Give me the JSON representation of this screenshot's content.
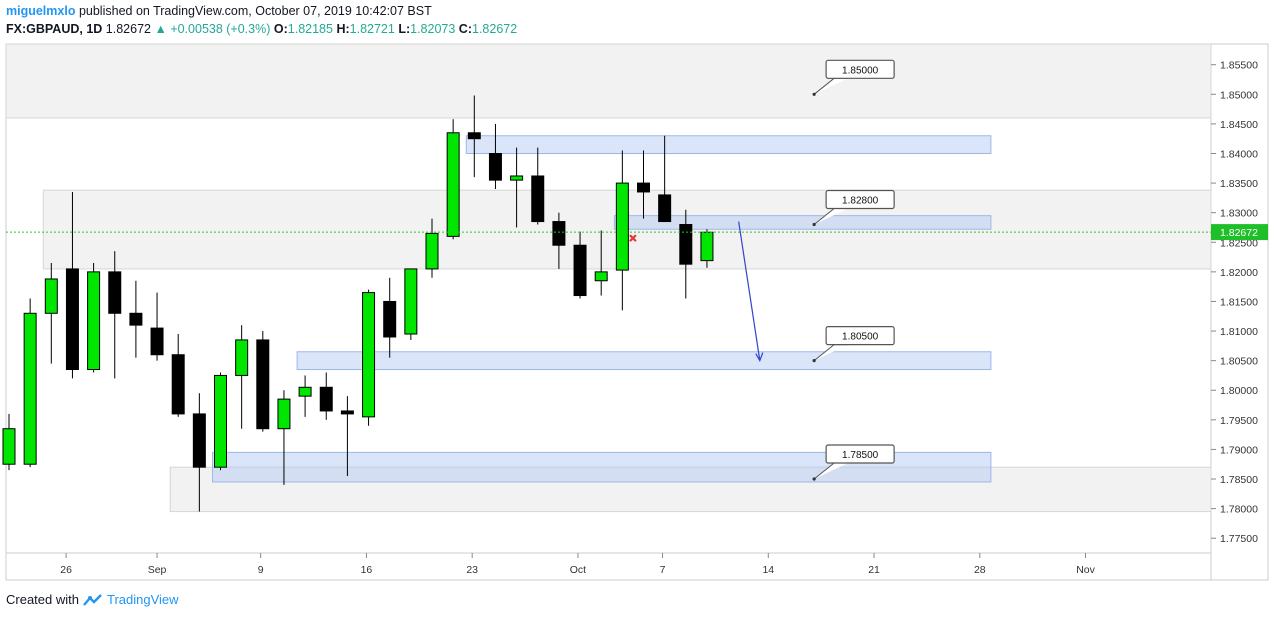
{
  "header": {
    "author": "miguelmxlo",
    "published_text": "published on TradingView.com, October 07, 2019 10:42:07 BST",
    "symbol": "FX:GBPAUD, 1D",
    "last": "1.82672",
    "change": "▲ +0.00538 (+0.3%)",
    "o_label": "O:",
    "o_val": "1.82185",
    "h_label": "H:",
    "h_val": "1.82721",
    "l_label": "L:",
    "l_val": "1.82073",
    "c_label": "C:",
    "c_val": "1.82672"
  },
  "footer": {
    "created_with": "Created with",
    "brand": "TradingView"
  },
  "colors": {
    "up": "#00e600",
    "down": "#000000",
    "grid_border": "#cccccc",
    "zone_gray": "#f2f2f2",
    "zone_blue": "rgba(173,198,245,0.45)",
    "price_line": "#22cc22",
    "arrow": "#3344cc",
    "cross": "#e53935"
  },
  "chart_data": {
    "type": "candlestick",
    "ylim": [
      1.7725,
      1.8585
    ],
    "y_ticks": [
      "1.85500",
      "1.85000",
      "1.84500",
      "1.84000",
      "1.83500",
      "1.83000",
      "1.82500",
      "1.82000",
      "1.81500",
      "1.81000",
      "1.80500",
      "1.80000",
      "1.79500",
      "1.79000",
      "1.78500",
      "1.78000",
      "1.77500"
    ],
    "y_tick_values": [
      1.855,
      1.85,
      1.845,
      1.84,
      1.835,
      1.83,
      1.825,
      1.82,
      1.815,
      1.81,
      1.805,
      1.8,
      1.795,
      1.79,
      1.785,
      1.78,
      1.775
    ],
    "x_ticks": [
      "26",
      "Sep",
      "9",
      "16",
      "23",
      "Oct",
      "7",
      "14",
      "21",
      "28",
      "Nov"
    ],
    "last_price_label": "1.82672",
    "last_price": 1.82672,
    "candles": [
      {
        "o": 1.7875,
        "h": 1.796,
        "l": 1.7865,
        "c": 1.7935
      },
      {
        "o": 1.7875,
        "h": 1.8155,
        "l": 1.787,
        "c": 1.813
      },
      {
        "o": 1.813,
        "h": 1.8215,
        "l": 1.8045,
        "c": 1.8188
      },
      {
        "o": 1.8205,
        "h": 1.8335,
        "l": 1.802,
        "c": 1.8035
      },
      {
        "o": 1.8035,
        "h": 1.8215,
        "l": 1.803,
        "c": 1.82
      },
      {
        "o": 1.82,
        "h": 1.8235,
        "l": 1.802,
        "c": 1.813
      },
      {
        "o": 1.813,
        "h": 1.8185,
        "l": 1.8055,
        "c": 1.811
      },
      {
        "o": 1.8105,
        "h": 1.8165,
        "l": 1.805,
        "c": 1.806
      },
      {
        "o": 1.806,
        "h": 1.8095,
        "l": 1.7955,
        "c": 1.796
      },
      {
        "o": 1.796,
        "h": 1.7995,
        "l": 1.7795,
        "c": 1.787
      },
      {
        "o": 1.787,
        "h": 1.803,
        "l": 1.7865,
        "c": 1.8025
      },
      {
        "o": 1.8025,
        "h": 1.811,
        "l": 1.7935,
        "c": 1.8085
      },
      {
        "o": 1.8085,
        "h": 1.81,
        "l": 1.793,
        "c": 1.7935
      },
      {
        "o": 1.7935,
        "h": 1.8,
        "l": 1.784,
        "c": 1.7985
      },
      {
        "o": 1.799,
        "h": 1.8025,
        "l": 1.7955,
        "c": 1.8005
      },
      {
        "o": 1.8005,
        "h": 1.803,
        "l": 1.795,
        "c": 1.7965
      },
      {
        "o": 1.7965,
        "h": 1.799,
        "l": 1.7855,
        "c": 1.796
      },
      {
        "o": 1.7955,
        "h": 1.817,
        "l": 1.794,
        "c": 1.8165
      },
      {
        "o": 1.815,
        "h": 1.819,
        "l": 1.8055,
        "c": 1.809
      },
      {
        "o": 1.8095,
        "h": 1.8205,
        "l": 1.8085,
        "c": 1.8205
      },
      {
        "o": 1.8205,
        "h": 1.829,
        "l": 1.819,
        "c": 1.8265
      },
      {
        "o": 1.826,
        "h": 1.8458,
        "l": 1.8255,
        "c": 1.8435
      },
      {
        "o": 1.8435,
        "h": 1.8498,
        "l": 1.836,
        "c": 1.8425
      },
      {
        "o": 1.84,
        "h": 1.845,
        "l": 1.834,
        "c": 1.8355
      },
      {
        "o": 1.8355,
        "h": 1.841,
        "l": 1.8275,
        "c": 1.8362
      },
      {
        "o": 1.8362,
        "h": 1.841,
        "l": 1.828,
        "c": 1.8285
      },
      {
        "o": 1.8285,
        "h": 1.83,
        "l": 1.8205,
        "c": 1.8245
      },
      {
        "o": 1.8245,
        "h": 1.8268,
        "l": 1.8155,
        "c": 1.816
      },
      {
        "o": 1.8185,
        "h": 1.827,
        "l": 1.816,
        "c": 1.82
      },
      {
        "o": 1.8203,
        "h": 1.8405,
        "l": 1.8135,
        "c": 1.835
      },
      {
        "o": 1.835,
        "h": 1.8405,
        "l": 1.829,
        "c": 1.8335
      },
      {
        "o": 1.833,
        "h": 1.843,
        "l": 1.8285,
        "c": 1.8285
      },
      {
        "o": 1.828,
        "h": 1.8305,
        "l": 1.8155,
        "c": 1.8213
      },
      {
        "o": 1.8219,
        "h": 1.8272,
        "l": 1.8207,
        "c": 1.8267
      }
    ],
    "gray_zones": [
      {
        "top": 1.8585,
        "bottom": 1.846,
        "x_from": 0,
        "x_to": "end"
      },
      {
        "top": 1.8338,
        "bottom": 1.8205,
        "x_from": 2,
        "x_to": "end"
      },
      {
        "top": 1.787,
        "bottom": 1.7795,
        "x_from": 8,
        "x_to": "end"
      }
    ],
    "blue_zones": [
      {
        "top": 1.843,
        "bottom": 1.84,
        "x_from": 22,
        "x_to": 46
      },
      {
        "top": 1.8295,
        "bottom": 1.8272,
        "x_from": 29,
        "x_to": 46
      },
      {
        "top": 1.8065,
        "bottom": 1.8035,
        "x_from": 14,
        "x_to": 46
      },
      {
        "top": 1.7895,
        "bottom": 1.7845,
        "x_from": 10,
        "x_to": 46
      }
    ],
    "annotations": [
      {
        "text": "1.85000",
        "price": 1.85,
        "at": 37.5
      },
      {
        "text": "1.82800",
        "price": 1.828,
        "at": 37.5
      },
      {
        "text": "1.80500",
        "price": 1.805,
        "at": 37.5
      },
      {
        "text": "1.78500",
        "price": 1.785,
        "at": 37.5
      }
    ],
    "arrow": {
      "from_index": 34.5,
      "from_price": 1.8285,
      "to_index": 35.5,
      "to_price": 1.805
    },
    "cross": {
      "index": 29.5,
      "price": 1.8257
    }
  }
}
